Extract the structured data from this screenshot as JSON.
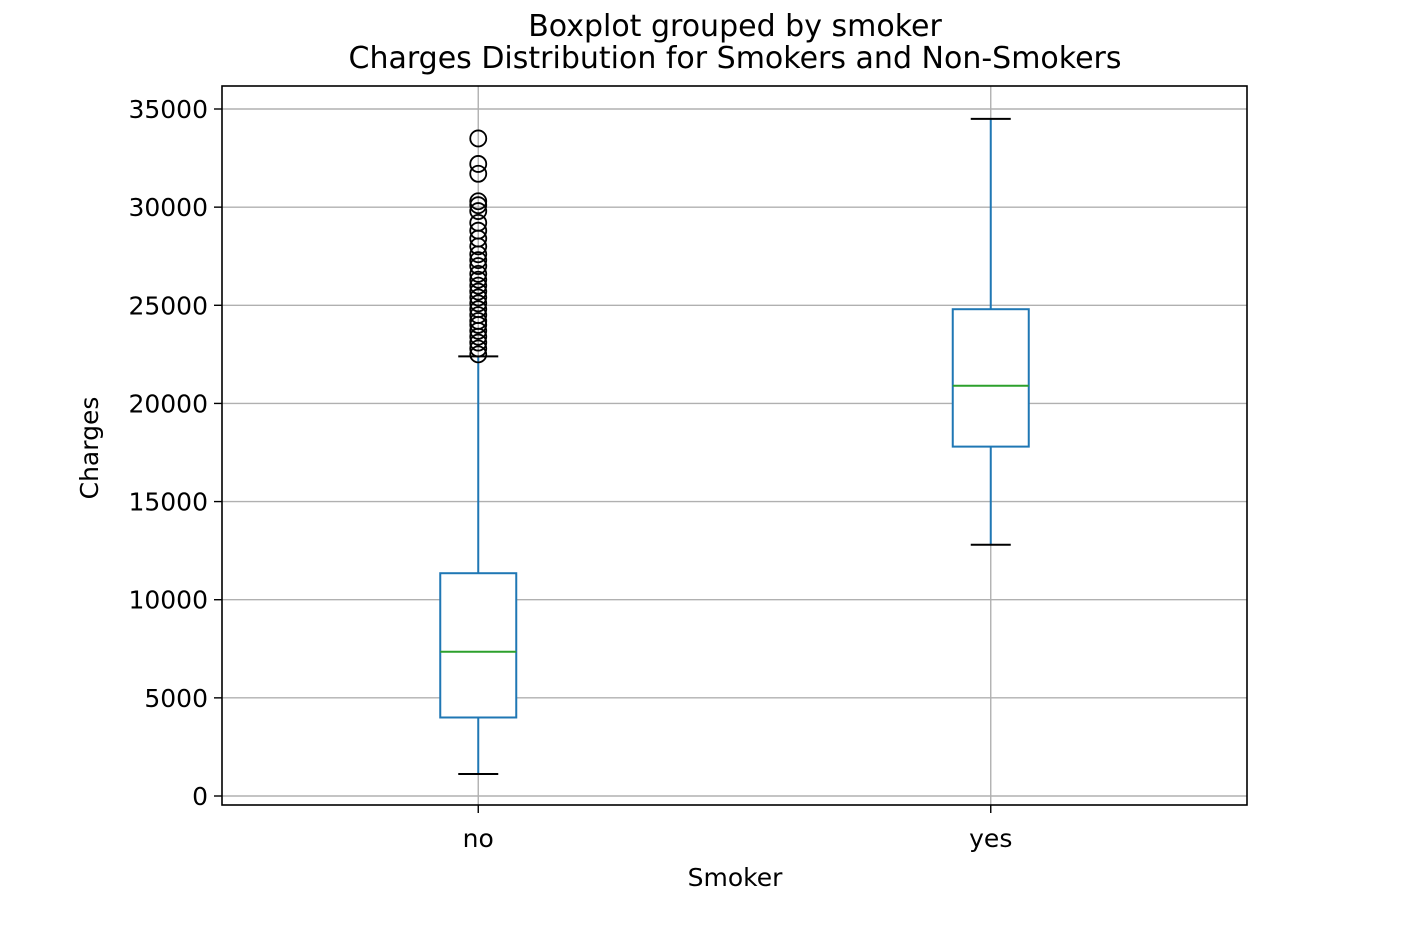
{
  "chart_data": {
    "type": "box",
    "suptitle": "Boxplot grouped by smoker",
    "title": "Charges Distribution for Smokers and Non-Smokers",
    "xlabel": "Smoker",
    "ylabel": "Charges",
    "ylim": [
      -500,
      35600
    ],
    "yticks": [
      0,
      5000,
      10000,
      15000,
      20000,
      25000,
      30000,
      35000
    ],
    "ytick_labels": [
      "0",
      "5000",
      "10000",
      "15000",
      "20000",
      "25000",
      "30000",
      "35000"
    ],
    "grid": true,
    "categories": [
      "no",
      "yes"
    ],
    "boxes": [
      {
        "category": "no",
        "whisker_low": 1120,
        "q1": 4000,
        "median": 7350,
        "q3": 11350,
        "whisker_high": 22400,
        "outliers": [
          22500,
          22800,
          23100,
          23400,
          23700,
          24000,
          24200,
          24500,
          24800,
          25100,
          25400,
          25700,
          26000,
          26300,
          26600,
          27000,
          27300,
          27600,
          28000,
          28400,
          28800,
          29200,
          29800,
          30100,
          30300,
          31700,
          32200,
          33500
        ]
      },
      {
        "category": "yes",
        "whisker_low": 12800,
        "q1": 17800,
        "median": 20900,
        "q3": 24800,
        "whisker_high": 34500,
        "outliers": []
      }
    ],
    "colors": {
      "box": "#1f77b4",
      "median": "#2ca02c",
      "cap": "#000000",
      "grid": "#b0b0b0",
      "axes": "#000000"
    }
  }
}
